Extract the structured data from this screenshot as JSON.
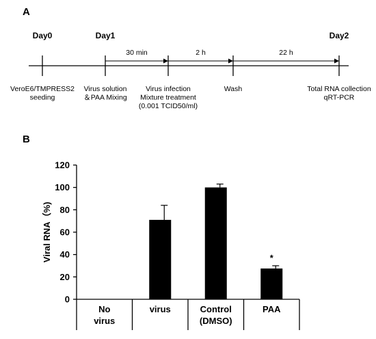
{
  "panel_a": {
    "label": "A",
    "days": [
      {
        "label": "Day0"
      },
      {
        "label": "Day1"
      },
      {
        "label": "Day2"
      }
    ],
    "intervals": [
      {
        "label": "30 min"
      },
      {
        "label": "2 h"
      },
      {
        "label": "22 h"
      }
    ],
    "steps": [
      {
        "lines": [
          "VeroE6/TMPRESS2",
          "seeding"
        ]
      },
      {
        "lines": [
          "Virus solution",
          "＆PAA Mixing"
        ]
      },
      {
        "lines": [
          "Virus infection",
          "Mixture treatment",
          "(0.001 TCID50/ml)"
        ]
      },
      {
        "lines": [
          "Wash"
        ]
      },
      {
        "lines": [
          "Total RNA collection",
          "qRT-PCR"
        ]
      }
    ]
  },
  "panel_b": {
    "label": "B"
  },
  "chart_data": {
    "type": "bar",
    "categories": [
      [
        "No",
        "virus"
      ],
      [
        "virus"
      ],
      [
        "Control",
        "(DMSO)"
      ],
      [
        "PAA"
      ]
    ],
    "values": [
      0,
      71,
      100,
      27.5
    ],
    "errors": [
      0,
      13,
      3,
      2.5
    ],
    "annotations": [
      "",
      "",
      "",
      "*"
    ],
    "title": "",
    "xlabel": "",
    "ylabel": "Viral RNA（%)",
    "ylim": [
      0,
      120
    ],
    "yticks": [
      0,
      20,
      40,
      60,
      80,
      100,
      120
    ],
    "grid": false,
    "bar_color": "#000000"
  }
}
